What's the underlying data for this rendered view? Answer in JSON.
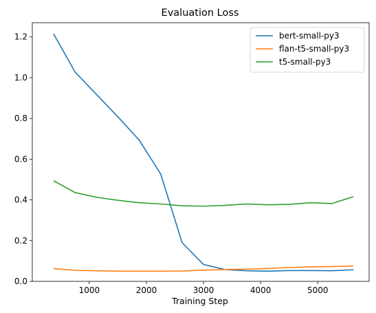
{
  "chart_data": {
    "type": "line",
    "title": "Evaluation Loss",
    "xlabel": "Training Step",
    "ylabel": "",
    "xlim": [
      2,
      5900
    ],
    "ylim": [
      0.0,
      1.27
    ],
    "x_ticks": [
      1000,
      2000,
      3000,
      4000,
      5000
    ],
    "y_ticks": [
      0.0,
      0.2,
      0.4,
      0.6,
      0.8,
      1.0,
      1.2
    ],
    "x_tick_labels": [
      "1000",
      "2000",
      "3000",
      "4000",
      "5000"
    ],
    "y_tick_labels": [
      "0.0",
      "0.2",
      "0.4",
      "0.6",
      "0.8",
      "1.0",
      "1.2"
    ],
    "grid": false,
    "legend_position": "top-right",
    "x": [
      375,
      750,
      1125,
      1500,
      1875,
      2250,
      2625,
      3000,
      3375,
      3750,
      4125,
      4500,
      4875,
      5250,
      5625
    ],
    "series": [
      {
        "name": "bert-small-py3",
        "color": "#1f77b4",
        "values": [
          1.215,
          1.028,
          0.918,
          0.808,
          0.693,
          0.527,
          0.19,
          0.083,
          0.058,
          0.052,
          0.05,
          0.053,
          0.053,
          0.052,
          0.057
        ]
      },
      {
        "name": "flan-t5-small-py3",
        "color": "#ff7f0e",
        "values": [
          0.063,
          0.054,
          0.052,
          0.05,
          0.05,
          0.05,
          0.051,
          0.055,
          0.058,
          0.06,
          0.063,
          0.068,
          0.071,
          0.073,
          0.075
        ]
      },
      {
        "name": "t5-small-py3",
        "color": "#2ca02c",
        "values": [
          0.494,
          0.436,
          0.413,
          0.398,
          0.386,
          0.38,
          0.371,
          0.369,
          0.373,
          0.38,
          0.376,
          0.378,
          0.386,
          0.382,
          0.416
        ]
      }
    ]
  }
}
